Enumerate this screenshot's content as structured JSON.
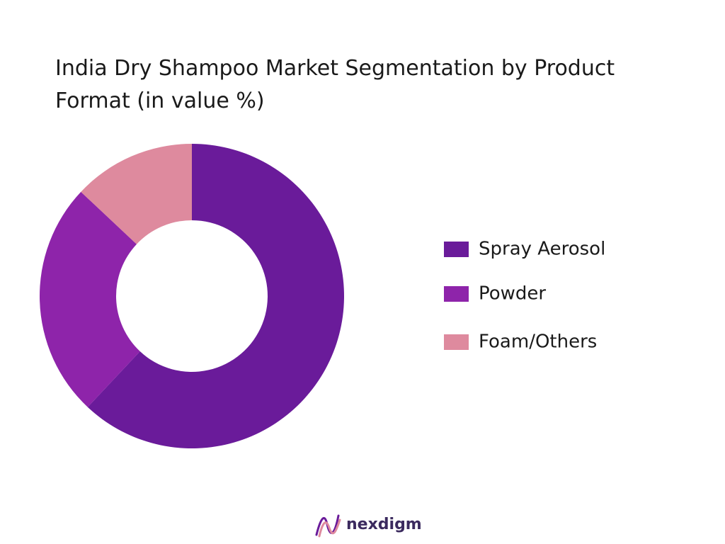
{
  "chart_data": {
    "type": "donut",
    "title": "India Dry Shampoo Market Segmentation by Product Format (in value %)",
    "categories": [
      "Spray Aerosol",
      "Powder",
      "Foam/Others"
    ],
    "values": [
      62,
      25,
      13
    ],
    "colors": [
      "#6a1b9a",
      "#8e24aa",
      "#de8a9e"
    ],
    "legend": "right"
  },
  "logo": "nexdigm"
}
